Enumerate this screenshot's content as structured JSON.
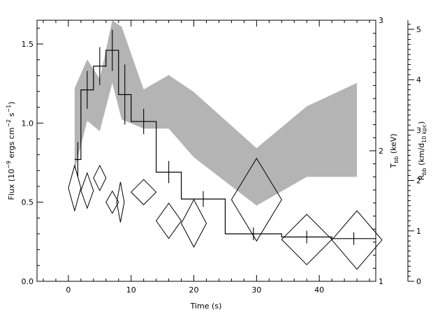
{
  "chart_data": {
    "type": "line",
    "title": "",
    "xlabel": "Time (s)",
    "ylabel_left": {
      "main": "Flux (10",
      "sup1": "−9",
      "mid": " ergs cm",
      "sup2": "−2",
      "mid2": " s",
      "sup3": "−1",
      "end": ")"
    },
    "ylabel_right_temp": {
      "main": "T",
      "sub": "bb",
      "end": " (keV)"
    },
    "ylabel_right_radius": {
      "main": "R",
      "sub": "bb",
      "mid": " (km/d",
      "sub2": "10 kpc",
      "end": ")"
    },
    "xlim": [
      -5,
      49
    ],
    "ylim_flux": [
      0,
      1.65
    ],
    "ylim_temp": [
      1,
      3
    ],
    "ylim_radius": [
      0,
      5.18
    ],
    "x_ticks": [
      0,
      10,
      20,
      30,
      40
    ],
    "x_tick_labels": [
      "0",
      "10",
      "20",
      "30",
      "40"
    ],
    "flux_ticks": [
      0,
      0.5,
      1.0,
      1.5
    ],
    "flux_tick_labels": [
      "0.0",
      "0.5",
      "1.0",
      "1.5"
    ],
    "temp_ticks": [
      1,
      2,
      3
    ],
    "temp_tick_labels": [
      "1",
      "2",
      "3"
    ],
    "radius_ticks": [
      0,
      1,
      2,
      3,
      4,
      5
    ],
    "radius_tick_labels": [
      "0",
      "1",
      "2",
      "3",
      "4",
      "5"
    ],
    "series": [
      {
        "kind": "flux-histogram",
        "bins": [
          {
            "x0": 1,
            "x1": 2,
            "y": 0.77,
            "err": 0.11
          },
          {
            "x0": 2,
            "x1": 4,
            "y": 1.21,
            "err": 0.12
          },
          {
            "x0": 4,
            "x1": 6,
            "y": 1.36,
            "err": 0.12
          },
          {
            "x0": 6,
            "x1": 8,
            "y": 1.46,
            "err": 0.13
          },
          {
            "x0": 8,
            "x1": 10,
            "y": 1.18,
            "err": 0.19
          },
          {
            "x0": 10,
            "x1": 14,
            "y": 1.01,
            "err": 0.08
          },
          {
            "x0": 14,
            "x1": 18,
            "y": 0.69,
            "err": 0.07
          },
          {
            "x0": 18,
            "x1": 25,
            "y": 0.52,
            "err": 0.05
          },
          {
            "x0": 25,
            "x1": 34,
            "y": 0.3,
            "err": 0.04
          },
          {
            "x0": 34,
            "x1": 42,
            "y": 0.28,
            "err": 0.04
          },
          {
            "x0": 42,
            "x1": 49,
            "y": 0.27,
            "err": 0.04
          }
        ]
      },
      {
        "kind": "temperature-band",
        "upper": [
          [
            1,
            2.48
          ],
          [
            3,
            2.7
          ],
          [
            5,
            2.55
          ],
          [
            7,
            3.0
          ],
          [
            8.5,
            2.95
          ],
          [
            12,
            2.47
          ],
          [
            16,
            2.58
          ],
          [
            20,
            2.45
          ],
          [
            30,
            2.02
          ],
          [
            38,
            2.34
          ],
          [
            46,
            2.52
          ]
        ],
        "lower": [
          [
            1,
            1.85
          ],
          [
            3,
            2.23
          ],
          [
            5,
            2.15
          ],
          [
            7,
            2.52
          ],
          [
            8.5,
            2.24
          ],
          [
            12,
            2.17
          ],
          [
            16,
            2.17
          ],
          [
            20,
            1.95
          ],
          [
            30,
            1.58
          ],
          [
            38,
            1.8
          ],
          [
            46,
            1.8
          ]
        ]
      },
      {
        "kind": "radius-diamonds",
        "points": [
          {
            "x": 1,
            "y": 1.85,
            "dx": 1.0,
            "dy": 0.45
          },
          {
            "x": 3,
            "y": 1.8,
            "dx": 1.0,
            "dy": 0.35
          },
          {
            "x": 5,
            "y": 2.05,
            "dx": 1.0,
            "dy": 0.25
          },
          {
            "x": 7,
            "y": 1.57,
            "dx": 1.0,
            "dy": 0.22
          },
          {
            "x": 8.3,
            "y": 1.57,
            "dx": 0.6,
            "dy": 0.4
          },
          {
            "x": 12,
            "y": 1.77,
            "dx": 2.0,
            "dy": 0.25
          },
          {
            "x": 16,
            "y": 1.2,
            "dx": 2.0,
            "dy": 0.35
          },
          {
            "x": 20,
            "y": 1.15,
            "dx": 2.0,
            "dy": 0.47
          },
          {
            "x": 30,
            "y": 1.62,
            "dx": 4.0,
            "dy": 0.82
          },
          {
            "x": 38,
            "y": 0.83,
            "dx": 4.0,
            "dy": 0.5
          },
          {
            "x": 46,
            "y": 0.82,
            "dx": 4.0,
            "dy": 0.58
          }
        ]
      }
    ]
  }
}
